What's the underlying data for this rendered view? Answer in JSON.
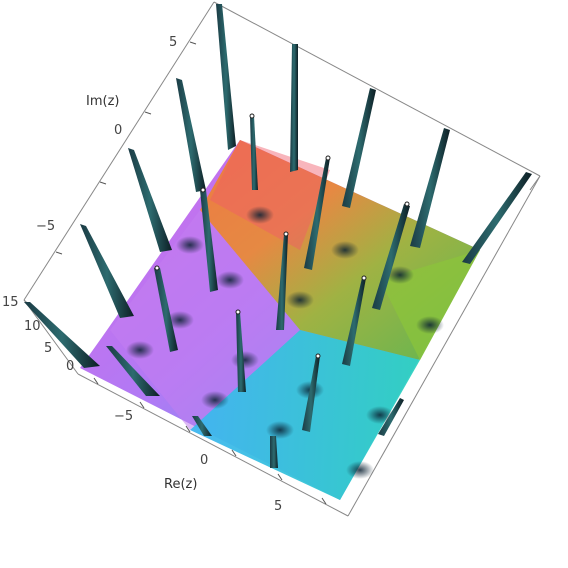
{
  "axes": {
    "x_label": "Re(z)",
    "y_label": "Im(z)",
    "x_ticks": [
      "−5",
      "0",
      "5"
    ],
    "y_ticks": [
      "5",
      "0",
      "−5"
    ],
    "z_ticks": [
      "15",
      "10",
      "5",
      "0"
    ]
  }
}
